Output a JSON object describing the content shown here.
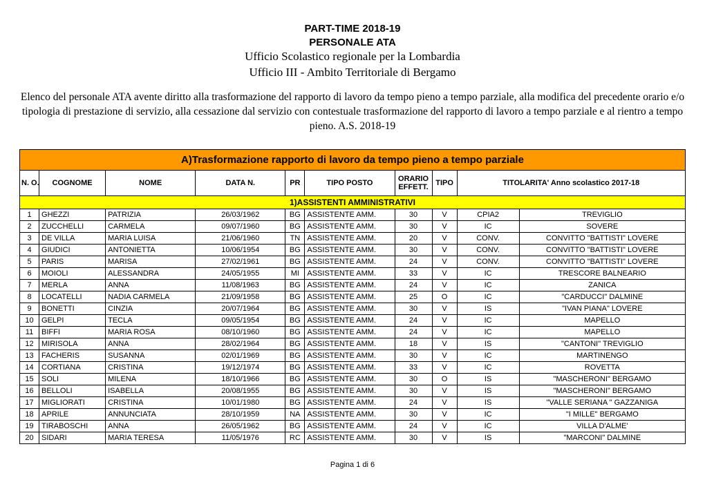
{
  "header": {
    "line1": "PART-TIME 2018-19",
    "line2": "PERSONALE ATA",
    "line3": "Ufficio Scolastico regionale per la Lombardia",
    "line4": "Ufficio III - Ambito Territoriale di Bergamo"
  },
  "intro": "Elenco del personale ATA avente diritto alla trasformazione del rapporto di lavoro da tempo pieno a tempo parziale, alla modifica del precedente orario e/o tipologia di prestazione di servizio, alla cessazione dal servizio con contestuale trasformazione del rapporto di lavoro a tempo parziale e al rientro a tempo pieno.   A.S. 2018-19",
  "table_title": "A)Trasformazione rapporto di lavoro da tempo pieno a tempo parziale",
  "columns": {
    "no": "N. O.",
    "cognome": "COGNOME",
    "nome": "NOME",
    "data": "DATA N.",
    "pr": "PR",
    "tipo_posto": "TIPO POSTO",
    "orario": "ORARIO EFFETT.",
    "tipo": "TIPO",
    "titolarita": "TITOLARITA' Anno scolastico 2017-18"
  },
  "section_label": "1)ASSISTENTI AMMINISTRATIVI",
  "colors": {
    "title_bg": "#ff9900",
    "section_bg": "#ffff00",
    "border": "#000000"
  },
  "rows": [
    {
      "n": "1",
      "cog": "GHEZZI",
      "nom": "PATRIZIA",
      "data": "26/03/1962",
      "pr": "BG",
      "tp": "ASSISTENTE AMM.",
      "or": "30",
      "tipo": "V",
      "t1": "CPIA2",
      "t2": "TREVIGLIO"
    },
    {
      "n": "2",
      "cog": "ZUCCHELLI",
      "nom": "CARMELA",
      "data": "09/07/1960",
      "pr": "BG",
      "tp": "ASSISTENTE AMM.",
      "or": "30",
      "tipo": "V",
      "t1": "IC",
      "t2": "SOVERE"
    },
    {
      "n": "3",
      "cog": "DE VILLA",
      "nom": "MARIA LUISA",
      "data": "21/06/1960",
      "pr": "TN",
      "tp": "ASSISTENTE AMM.",
      "or": "20",
      "tipo": "V",
      "t1": "CONV.",
      "t2": "CONVITTO \"BATTISTI\" LOVERE"
    },
    {
      "n": "4",
      "cog": "GIUDICI",
      "nom": "ANTONIETTA",
      "data": "10/06/1954",
      "pr": "BG",
      "tp": "ASSISTENTE AMM.",
      "or": "30",
      "tipo": "V",
      "t1": "CONV.",
      "t2": "CONVITTO \"BATTISTI\" LOVERE"
    },
    {
      "n": "5",
      "cog": "PARIS",
      "nom": "MARISA",
      "data": "27/02/1961",
      "pr": "BG",
      "tp": "ASSISTENTE AMM.",
      "or": "24",
      "tipo": "V",
      "t1": "CONV.",
      "t2": "CONVITTO \"BATTISTI\" LOVERE"
    },
    {
      "n": "6",
      "cog": "MOIOLI",
      "nom": "ALESSANDRA",
      "data": "24/05/1955",
      "pr": "MI",
      "tp": "ASSISTENTE AMM.",
      "or": "33",
      "tipo": "V",
      "t1": "IC",
      "t2": "TRESCORE BALNEARIO"
    },
    {
      "n": "7",
      "cog": "MERLA",
      "nom": "ANNA",
      "data": "11/08/1963",
      "pr": "BG",
      "tp": "ASSISTENTE AMM.",
      "or": "24",
      "tipo": "V",
      "t1": "IC",
      "t2": "ZANICA"
    },
    {
      "n": "8",
      "cog": "LOCATELLI",
      "nom": "NADIA CARMELA",
      "data": "21/09/1958",
      "pr": "BG",
      "tp": "ASSISTENTE AMM.",
      "or": "25",
      "tipo": "O",
      "t1": "IC",
      "t2": "\"CARDUCCI\" DALMINE"
    },
    {
      "n": "9",
      "cog": "BONETTI",
      "nom": "CINZIA",
      "data": "20/07/1964",
      "pr": "BG",
      "tp": "ASSISTENTE AMM.",
      "or": "30",
      "tipo": "V",
      "t1": "IS",
      "t2": "\"IVAN PIANA\" LOVERE"
    },
    {
      "n": "10",
      "cog": "GELPI",
      "nom": "TECLA",
      "data": "09/05/1954",
      "pr": "BG",
      "tp": "ASSISTENTE AMM.",
      "or": "24",
      "tipo": "V",
      "t1": "IC",
      "t2": "MAPELLO"
    },
    {
      "n": "11",
      "cog": "BIFFI",
      "nom": "MARIA ROSA",
      "data": "08/10/1960",
      "pr": "BG",
      "tp": "ASSISTENTE AMM.",
      "or": "24",
      "tipo": "V",
      "t1": "IC",
      "t2": "MAPELLO"
    },
    {
      "n": "12",
      "cog": "MIRISOLA",
      "nom": "ANNA",
      "data": "28/02/1964",
      "pr": "BG",
      "tp": "ASSISTENTE AMM.",
      "or": "18",
      "tipo": "V",
      "t1": "IS",
      "t2": "\"CANTONI\" TREVIGLIO"
    },
    {
      "n": "13",
      "cog": "FACHERIS",
      "nom": "SUSANNA",
      "data": "02/01/1969",
      "pr": "BG",
      "tp": "ASSISTENTE AMM.",
      "or": "30",
      "tipo": "V",
      "t1": "IC",
      "t2": "MARTINENGO"
    },
    {
      "n": "14",
      "cog": "CORTIANA",
      "nom": "CRISTINA",
      "data": "19/12/1974",
      "pr": "BG",
      "tp": "ASSISTENTE AMM.",
      "or": "33",
      "tipo": "V",
      "t1": "IC",
      "t2": "ROVETTA"
    },
    {
      "n": "15",
      "cog": "SOLI",
      "nom": "MILENA",
      "data": "18/10/1966",
      "pr": "BG",
      "tp": "ASSISTENTE AMM.",
      "or": "30",
      "tipo": "O",
      "t1": "IS",
      "t2": "\"MASCHERONI\" BERGAMO"
    },
    {
      "n": "16",
      "cog": "BELLOLI",
      "nom": "ISABELLA",
      "data": "20/08/1955",
      "pr": "BG",
      "tp": "ASSISTENTE AMM.",
      "or": "30",
      "tipo": "V",
      "t1": "IS",
      "t2": "\"MASCHERONI\" BERGAMO"
    },
    {
      "n": "17",
      "cog": "MIGLIORATI",
      "nom": "CRISTINA",
      "data": "10/01/1980",
      "pr": "BG",
      "tp": "ASSISTENTE AMM.",
      "or": "24",
      "tipo": "V",
      "t1": "IS",
      "t2": "\"VALLE SERIANA \" GAZZANIGA"
    },
    {
      "n": "18",
      "cog": "APRILE",
      "nom": "ANNUNCIATA",
      "data": "28/10/1959",
      "pr": "NA",
      "tp": "ASSISTENTE AMM.",
      "or": "30",
      "tipo": "V",
      "t1": "IC",
      "t2": "\"I MILLE\" BERGAMO"
    },
    {
      "n": "19",
      "cog": "TIRABOSCHI",
      "nom": "ANNA",
      "data": "26/05/1962",
      "pr": "BG",
      "tp": "ASSISTENTE AMM.",
      "or": "24",
      "tipo": "V",
      "t1": "IC",
      "t2": "VILLA D'ALME'"
    },
    {
      "n": "20",
      "cog": "SIDARI",
      "nom": "MARIA TERESA",
      "data": "11/05/1976",
      "pr": "RC",
      "tp": "ASSISTENTE AMM.",
      "or": "30",
      "tipo": "V",
      "t1": "IS",
      "t2": "\"MARCONI\" DALMINE"
    }
  ],
  "footer": "Pagina 1 di 6"
}
